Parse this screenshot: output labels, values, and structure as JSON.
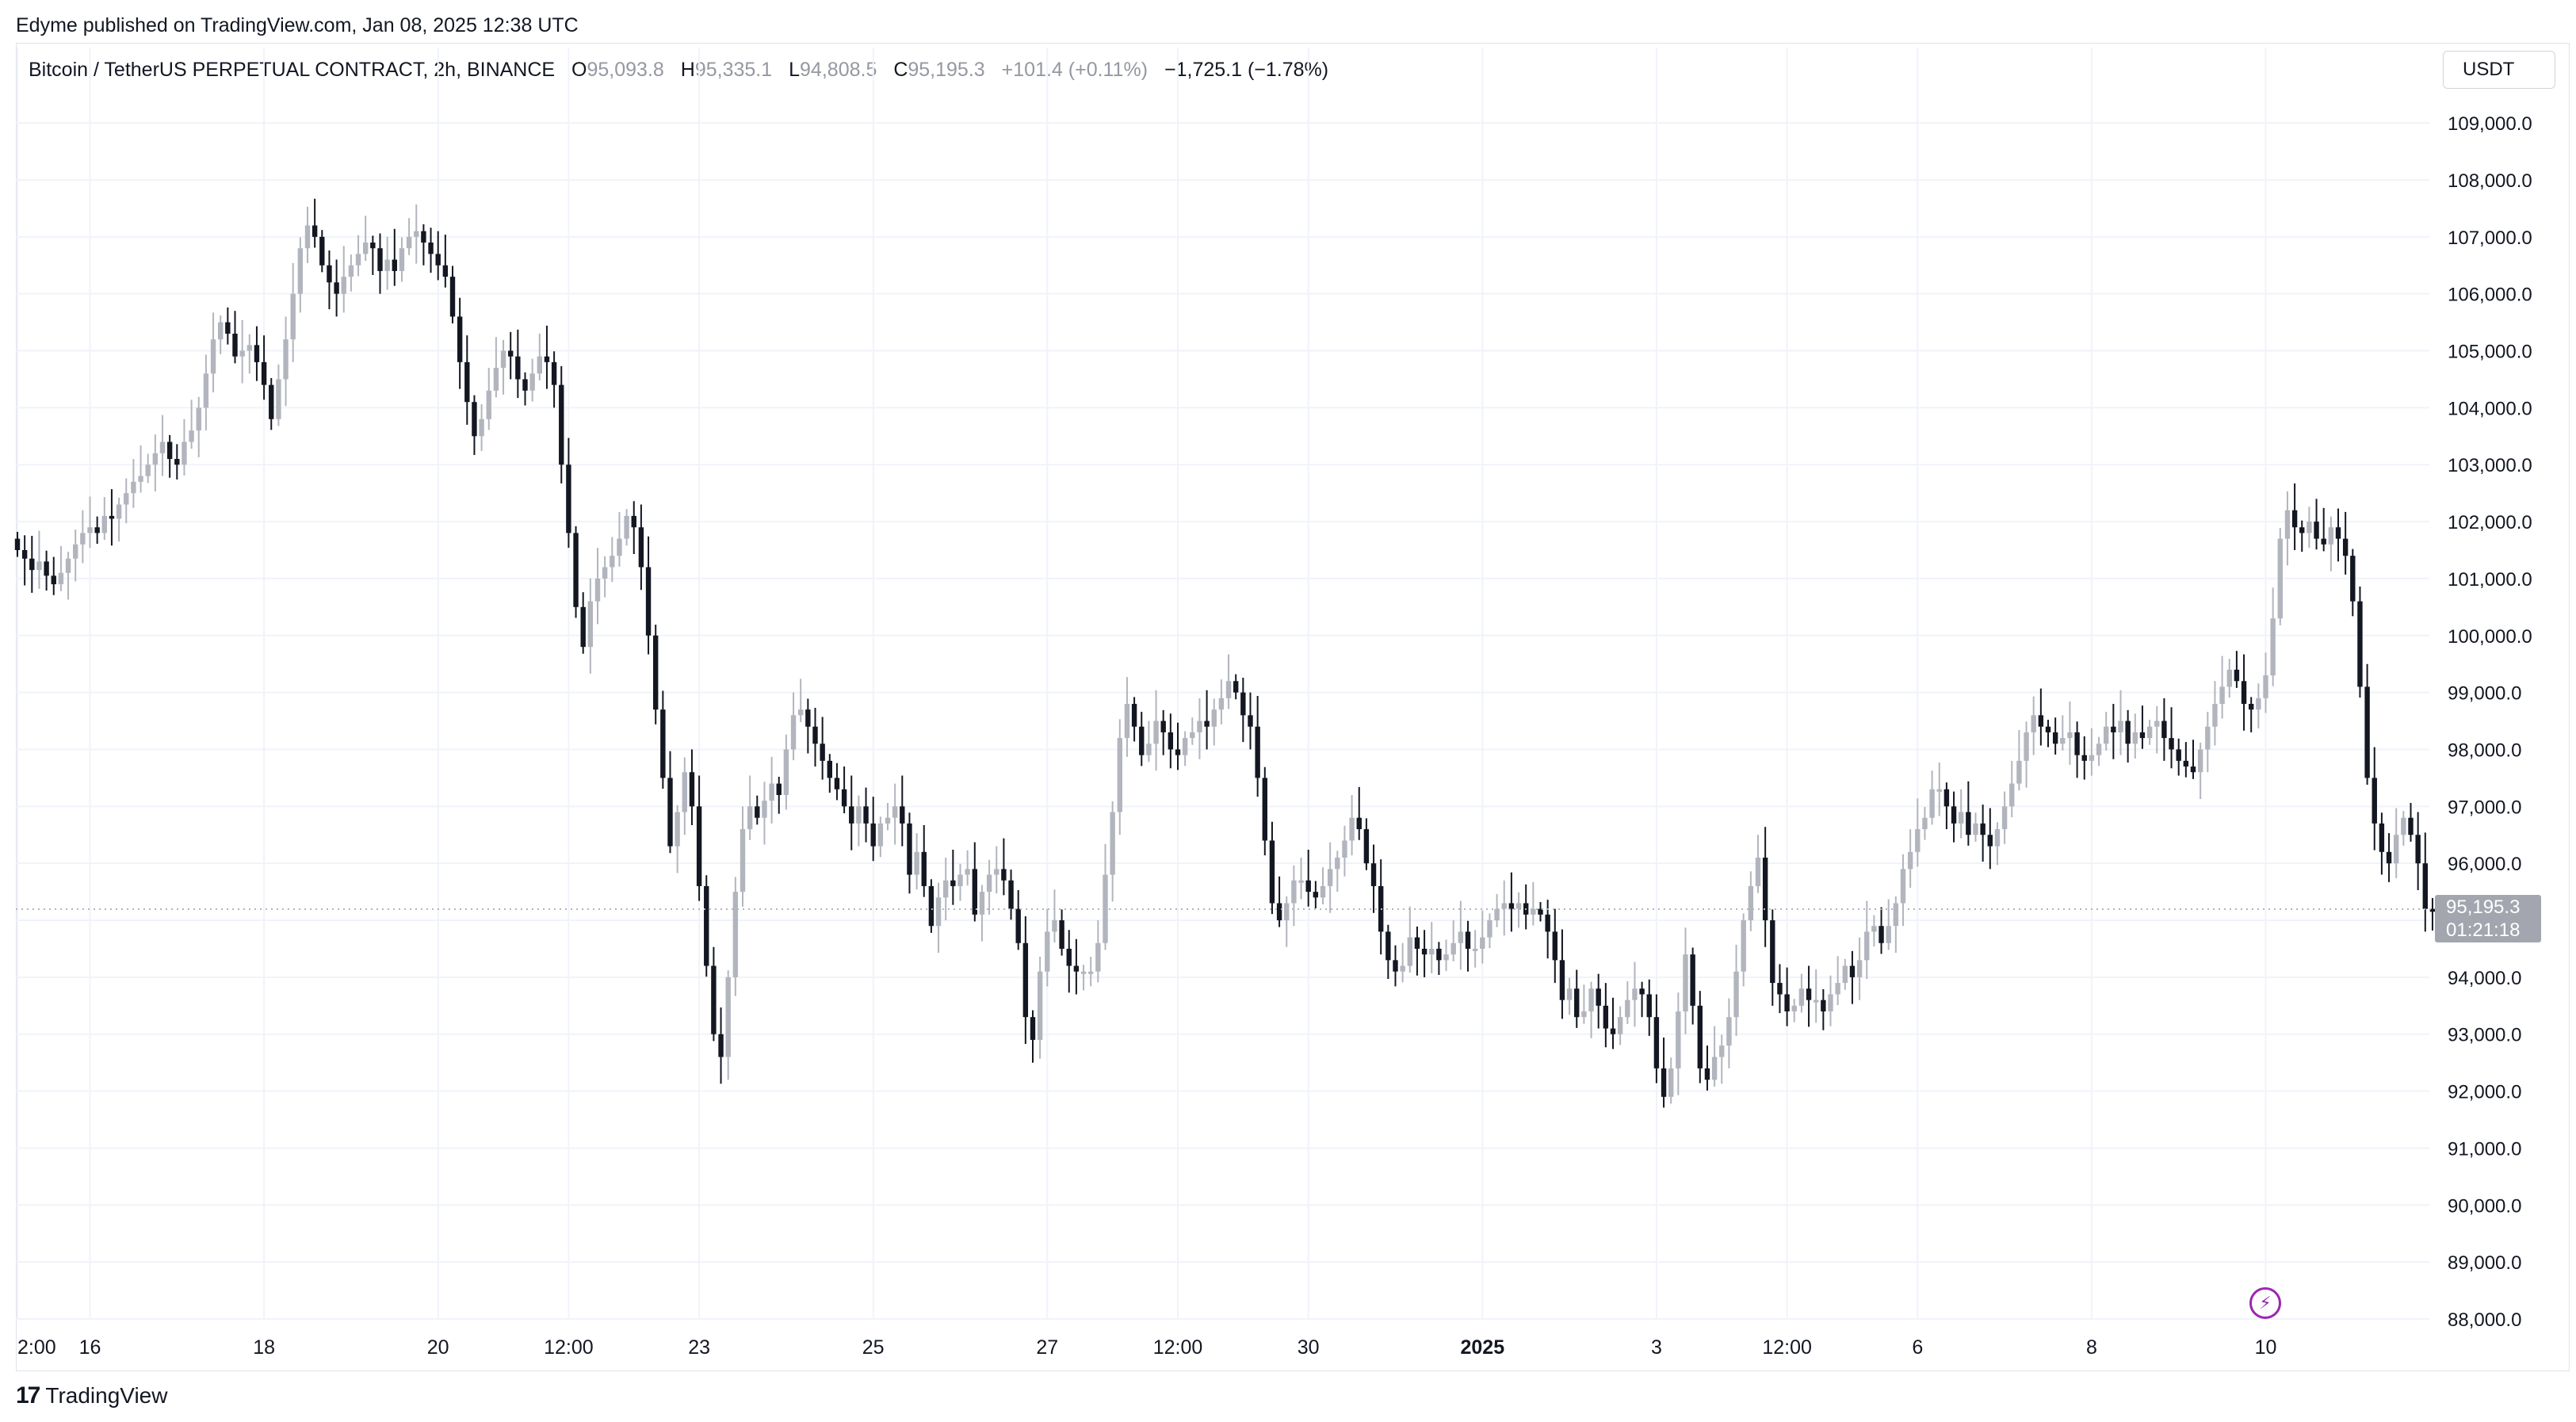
{
  "publisher": "Edyme published on TradingView.com, Jan 08, 2025 12:38 UTC",
  "legend": {
    "symbol": "Bitcoin / TetherUS PERPETUAL CONTRACT, 2h, BINANCE",
    "open_label": "O",
    "open": "95,093.8",
    "high_label": "H",
    "high": "95,335.1",
    "low_label": "L",
    "low": "94,808.5",
    "close_label": "C",
    "close": "95,195.3",
    "bar_change": "+101.4 (+0.11%)",
    "day_change": "−1,725.1 (−1.78%)"
  },
  "unit_button": "USDT",
  "footer": {
    "logo_text": "TradingView",
    "logo_mark": "17"
  },
  "colors": {
    "up": "#b2b5be",
    "down": "#131722",
    "grid": "#f0f3fa",
    "price_tag": "#a3a6af",
    "accent": "#9c27b0"
  },
  "icons": {
    "alert": "lightning-icon"
  },
  "chart_data": {
    "type": "candlestick",
    "ylim": [
      88000,
      109600
    ],
    "y_ticks": [
      88000,
      89000,
      90000,
      91000,
      92000,
      93000,
      94000,
      95000,
      96000,
      97000,
      98000,
      99000,
      100000,
      101000,
      102000,
      103000,
      104000,
      105000,
      106000,
      107000,
      108000,
      109000
    ],
    "y_tick_labels": [
      "88,000.0",
      "89,000.0",
      "90,000.0",
      "91,000.0",
      "92,000.0",
      "93,000.0",
      "94,000.0",
      "95,000.0",
      "96,000.0",
      "97,000.0",
      "98,000.0",
      "99,000.0",
      "100,000.0",
      "101,000.0",
      "102,000.0",
      "103,000.0",
      "104,000.0",
      "105,000.0",
      "106,000.0",
      "107,000.0",
      "108,000.0",
      "109,000.0"
    ],
    "x_ticks": [
      {
        "label": "2:00",
        "bar": 0,
        "bold": false
      },
      {
        "label": "16",
        "bar": 10,
        "bold": false
      },
      {
        "label": "18",
        "bar": 34,
        "bold": false
      },
      {
        "label": "20",
        "bar": 58,
        "bold": false
      },
      {
        "label": "12:00",
        "bar": 76,
        "bold": false
      },
      {
        "label": "23",
        "bar": 94,
        "bold": false
      },
      {
        "label": "25",
        "bar": 118,
        "bold": false
      },
      {
        "label": "27",
        "bar": 142,
        "bold": false
      },
      {
        "label": "12:00",
        "bar": 160,
        "bold": false
      },
      {
        "label": "30",
        "bar": 178,
        "bold": false
      },
      {
        "label": "2025",
        "bar": 202,
        "bold": true
      },
      {
        "label": "3",
        "bar": 226,
        "bold": false
      },
      {
        "label": "12:00",
        "bar": 244,
        "bold": false
      },
      {
        "label": "6",
        "bar": 262,
        "bold": false
      },
      {
        "label": "8",
        "bar": 286,
        "bold": false
      },
      {
        "label": "10",
        "bar": 310,
        "bold": false
      }
    ],
    "last_price": 95195.3,
    "last_price_label": "95,195.3",
    "countdown": "01:21:18",
    "closes": [
      101500,
      101350,
      101150,
      101300,
      101050,
      100900,
      101100,
      101350,
      101600,
      101800,
      101900,
      101800,
      102100,
      102050,
      102300,
      102500,
      102700,
      102800,
      103000,
      103200,
      103400,
      103100,
      103000,
      103400,
      103600,
      104000,
      104600,
      105200,
      105500,
      105300,
      104900,
      105000,
      105100,
      104800,
      104400,
      103800,
      104500,
      105200,
      106000,
      106800,
      107200,
      107000,
      106500,
      106200,
      106000,
      106300,
      106500,
      106700,
      106900,
      106800,
      106400,
      106600,
      106400,
      106800,
      107000,
      107100,
      106900,
      106700,
      106500,
      106300,
      105600,
      104800,
      104100,
      103500,
      103800,
      104300,
      104700,
      105000,
      104900,
      104500,
      104300,
      104600,
      104900,
      104800,
      104400,
      103000,
      101800,
      100500,
      99800,
      100600,
      101000,
      101200,
      101400,
      101700,
      102100,
      101900,
      101200,
      100000,
      98700,
      97500,
      96300,
      96900,
      97600,
      97000,
      95600,
      94200,
      93000,
      92600,
      94000,
      95500,
      96600,
      97000,
      96800,
      97100,
      97400,
      97200,
      98000,
      98600,
      98700,
      98400,
      98100,
      97800,
      97500,
      97300,
      97000,
      96700,
      97000,
      96700,
      96300,
      96700,
      96800,
      97000,
      96700,
      95800,
      96200,
      95600,
      94900,
      95400,
      95700,
      95600,
      95800,
      95900,
      95100,
      95500,
      95800,
      95900,
      95700,
      95200,
      94600,
      93300,
      92900,
      94100,
      94800,
      95000,
      94500,
      94200,
      94100,
      94100,
      94100,
      94600,
      95800,
      96900,
      98200,
      98800,
      98400,
      97900,
      98100,
      98500,
      98300,
      98000,
      97900,
      98200,
      98300,
      98500,
      98400,
      98700,
      98900,
      99200,
      99000,
      98600,
      98400,
      97500,
      96400,
      95300,
      95000,
      95300,
      95700,
      95700,
      95500,
      95400,
      95600,
      95900,
      96100,
      96400,
      96800,
      96600,
      96000,
      95600,
      94800,
      94300,
      94100,
      94200,
      94700,
      94500,
      94400,
      94500,
      94300,
      94400,
      94600,
      94800,
      94500,
      94500,
      94700,
      95000,
      95200,
      95300,
      95200,
      95300,
      95100,
      95200,
      95100,
      94800,
      94300,
      93600,
      93800,
      93300,
      93400,
      93800,
      93500,
      93100,
      93000,
      93300,
      93600,
      93800,
      93700,
      93300,
      92400,
      91900,
      92400,
      93400,
      94400,
      93500,
      92400,
      92200,
      92600,
      92800,
      93300,
      94100,
      95000,
      95600,
      96100,
      95000,
      93900,
      93700,
      93400,
      93500,
      93800,
      93600,
      93600,
      93400,
      93700,
      93900,
      94200,
      94000,
      94300,
      94800,
      94900,
      94600,
      94900,
      95300,
      95900,
      96200,
      96600,
      96800,
      97300,
      97300,
      97000,
      96700,
      96900,
      96500,
      96700,
      96500,
      96300,
      96600,
      97000,
      97400,
      97800,
      98300,
      98600,
      98400,
      98300,
      98100,
      98200,
      98300,
      97900,
      97800,
      97900,
      98100,
      98400,
      98300,
      98500,
      98100,
      98300,
      98200,
      98400,
      98500,
      98200,
      98000,
      97800,
      97700,
      97600,
      98000,
      98400,
      98800,
      99100,
      99400,
      99200,
      98800,
      98700,
      98900,
      99300,
      100300,
      101700,
      102200,
      101900,
      101800,
      102000,
      101700,
      101600,
      101900,
      101700,
      101400,
      100600,
      99100,
      97500,
      96700,
      96200,
      96000,
      96500,
      96800,
      96500,
      96000,
      95200,
      95150
    ]
  }
}
